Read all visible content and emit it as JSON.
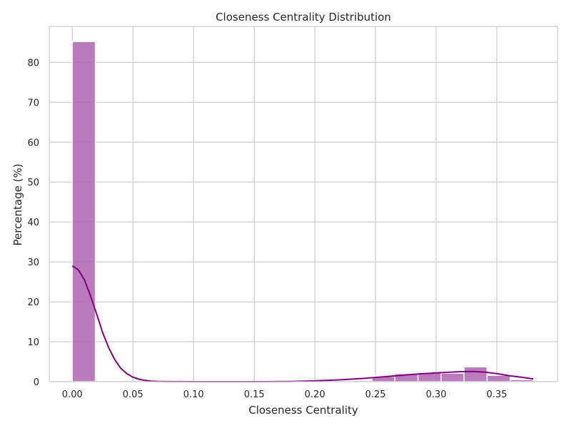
{
  "chart_data": {
    "type": "histogram",
    "title": "Closeness Centrality Distribution",
    "xlabel": "Closeness Centrality",
    "ylabel": "Percentage (%)",
    "xlim": [
      -0.019,
      0.4
    ],
    "ylim": [
      0,
      89
    ],
    "x_ticks": [
      0.0,
      0.05,
      0.1,
      0.15,
      0.2,
      0.25,
      0.3,
      0.35
    ],
    "x_tick_labels": [
      "0.00",
      "0.05",
      "0.10",
      "0.15",
      "0.20",
      "0.25",
      "0.30",
      "0.35"
    ],
    "y_ticks": [
      0,
      10,
      20,
      30,
      40,
      50,
      60,
      70,
      80
    ],
    "y_tick_labels": [
      "0",
      "10",
      "20",
      "30",
      "40",
      "50",
      "60",
      "70",
      "80"
    ],
    "grid": true,
    "bar_color": "#b36cb5",
    "line_color": "#800080",
    "bins": [
      {
        "x0": 0.0,
        "x1": 0.019,
        "value": 85.2
      },
      {
        "x0": 0.019,
        "x1": 0.038,
        "value": 0
      },
      {
        "x0": 0.038,
        "x1": 0.057,
        "value": 0
      },
      {
        "x0": 0.057,
        "x1": 0.076,
        "value": 0
      },
      {
        "x0": 0.076,
        "x1": 0.095,
        "value": 0
      },
      {
        "x0": 0.095,
        "x1": 0.114,
        "value": 0
      },
      {
        "x0": 0.114,
        "x1": 0.133,
        "value": 0
      },
      {
        "x0": 0.133,
        "x1": 0.152,
        "value": 0
      },
      {
        "x0": 0.152,
        "x1": 0.171,
        "value": 0
      },
      {
        "x0": 0.171,
        "x1": 0.19,
        "value": 0
      },
      {
        "x0": 0.19,
        "x1": 0.209,
        "value": 0.1
      },
      {
        "x0": 0.209,
        "x1": 0.228,
        "value": 0
      },
      {
        "x0": 0.228,
        "x1": 0.247,
        "value": 0
      },
      {
        "x0": 0.247,
        "x1": 0.266,
        "value": 1.3
      },
      {
        "x0": 0.266,
        "x1": 0.285,
        "value": 2.0
      },
      {
        "x0": 0.285,
        "x1": 0.304,
        "value": 2.3
      },
      {
        "x0": 0.304,
        "x1": 0.323,
        "value": 2.1
      },
      {
        "x0": 0.323,
        "x1": 0.342,
        "value": 3.7
      },
      {
        "x0": 0.342,
        "x1": 0.361,
        "value": 1.6
      },
      {
        "x0": 0.361,
        "x1": 0.38,
        "value": 0.5
      }
    ],
    "kde": {
      "x": [
        0.0,
        0.005,
        0.01,
        0.015,
        0.02,
        0.025,
        0.03,
        0.035,
        0.04,
        0.045,
        0.05,
        0.055,
        0.06,
        0.065,
        0.07,
        0.075,
        0.08,
        0.09,
        0.1,
        0.12,
        0.15,
        0.18,
        0.2,
        0.22,
        0.24,
        0.26,
        0.28,
        0.3,
        0.32,
        0.33,
        0.34,
        0.35,
        0.36,
        0.37,
        0.38
      ],
      "y": [
        29.0,
        28.0,
        25.5,
        21.5,
        17.0,
        12.3,
        8.5,
        5.5,
        3.3,
        2.0,
        1.1,
        0.6,
        0.3,
        0.15,
        0.08,
        0.04,
        0.02,
        0.01,
        0.0,
        0.0,
        0.0,
        0.05,
        0.2,
        0.45,
        0.8,
        1.3,
        1.8,
        2.2,
        2.5,
        2.55,
        2.4,
        2.0,
        1.5,
        1.1,
        0.7
      ]
    }
  }
}
